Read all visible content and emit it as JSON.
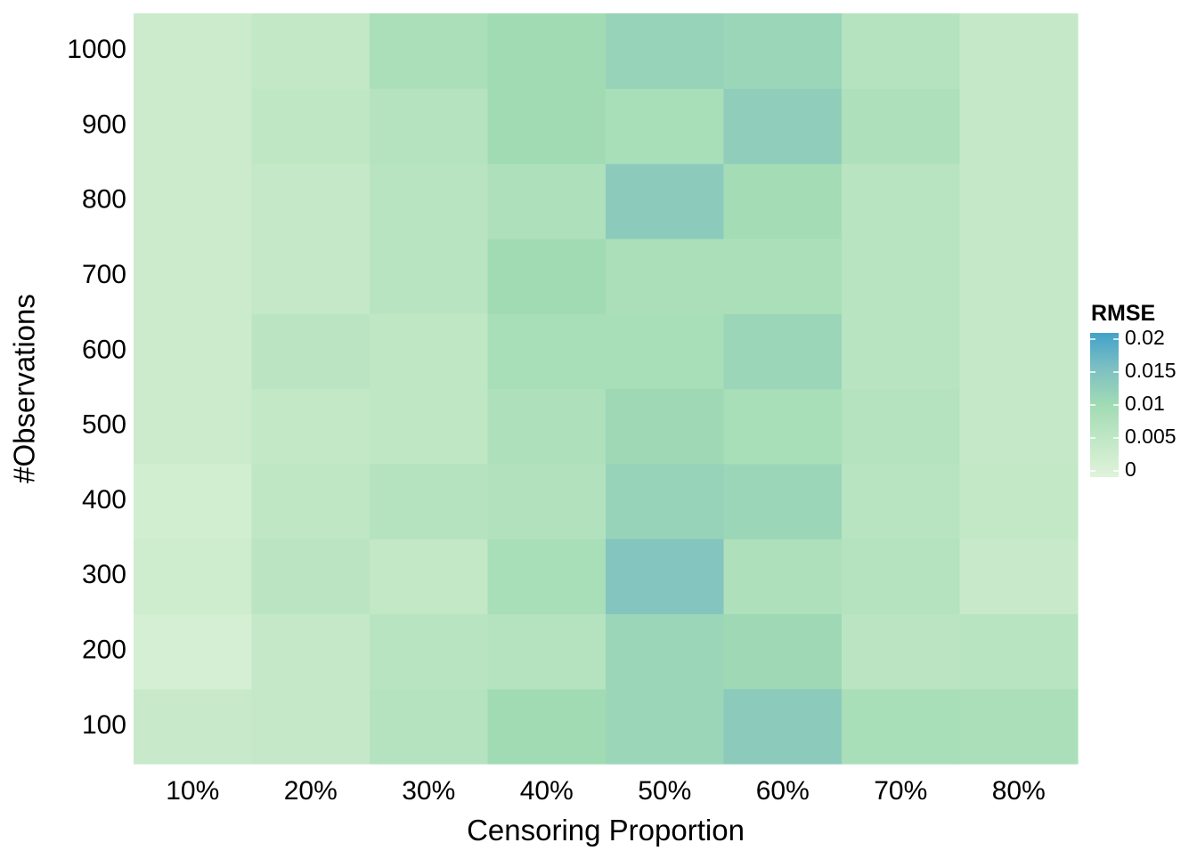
{
  "chart_data": {
    "type": "heatmap",
    "title": "",
    "xlabel": "Censoring Proportion",
    "ylabel": "#Observations",
    "x_categories": [
      "10%",
      "20%",
      "30%",
      "40%",
      "50%",
      "60%",
      "70%",
      "80%"
    ],
    "y_categories": [
      "100",
      "200",
      "300",
      "400",
      "500",
      "600",
      "700",
      "800",
      "900",
      "1000"
    ],
    "values": [
      [
        0.004,
        0.0045,
        0.007,
        0.01,
        0.011,
        0.013,
        0.009,
        0.0085
      ],
      [
        0.002,
        0.0045,
        0.0065,
        0.007,
        0.011,
        0.0105,
        0.006,
        0.0065
      ],
      [
        0.003,
        0.006,
        0.005,
        0.009,
        0.014,
        0.008,
        0.007,
        0.004
      ],
      [
        0.0025,
        0.0055,
        0.007,
        0.0075,
        0.0115,
        0.011,
        0.0065,
        0.005
      ],
      [
        0.0035,
        0.005,
        0.0055,
        0.008,
        0.0105,
        0.009,
        0.007,
        0.0045
      ],
      [
        0.0035,
        0.006,
        0.0055,
        0.009,
        0.009,
        0.011,
        0.0065,
        0.0045
      ],
      [
        0.0035,
        0.0045,
        0.0065,
        0.01,
        0.0085,
        0.0085,
        0.0065,
        0.0045
      ],
      [
        0.0035,
        0.0045,
        0.0065,
        0.008,
        0.013,
        0.0095,
        0.0065,
        0.0045
      ],
      [
        0.0035,
        0.0055,
        0.007,
        0.01,
        0.009,
        0.0125,
        0.008,
        0.0045
      ],
      [
        0.0035,
        0.005,
        0.0085,
        0.01,
        0.0115,
        0.011,
        0.007,
        0.0045
      ]
    ],
    "legend": {
      "title": "RMSE",
      "position": "right",
      "ticks": [
        {
          "value": 0,
          "label": "0"
        },
        {
          "value": 0.005,
          "label": "0.005"
        },
        {
          "value": 0.01,
          "label": "0.01"
        },
        {
          "value": 0.015,
          "label": "0.015"
        },
        {
          "value": 0.02,
          "label": "0.02"
        }
      ],
      "range": [
        0,
        0.02
      ]
    },
    "color_scale": [
      {
        "value": 0,
        "color": "#e0f3db"
      },
      {
        "value": 0.005,
        "color": "#c2e8c6"
      },
      {
        "value": 0.01,
        "color": "#a1dbb4"
      },
      {
        "value": 0.015,
        "color": "#7ec0c2"
      },
      {
        "value": 0.02,
        "color": "#43a2ca"
      }
    ],
    "grid": false
  }
}
